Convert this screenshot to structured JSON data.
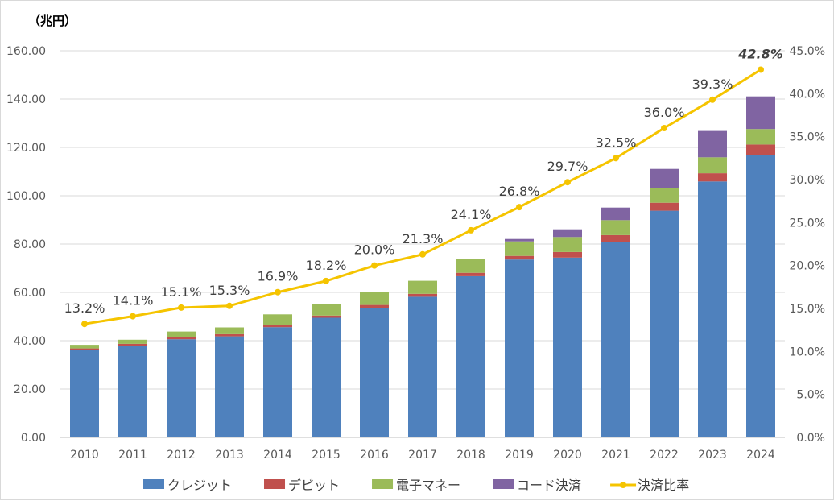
{
  "chart_data": {
    "type": "bar",
    "stacked": true,
    "ylabel": "（兆円）",
    "ylim": [
      0,
      160
    ],
    "y_ticks": [
      "0.00",
      "20.00",
      "40.00",
      "60.00",
      "80.00",
      "100.00",
      "120.00",
      "140.00",
      "160.00"
    ],
    "y2lim": [
      0,
      45
    ],
    "y2_ticks": [
      "0.0%",
      "5.0%",
      "10.0%",
      "15.0%",
      "20.0%",
      "25.0%",
      "30.0%",
      "35.0%",
      "40.0%",
      "45.0%"
    ],
    "grid": true,
    "legend_placement": "bottom",
    "categories": [
      "2010",
      "2011",
      "2012",
      "2013",
      "2014",
      "2015",
      "2016",
      "2017",
      "2018",
      "2019",
      "2020",
      "2021",
      "2022",
      "2023",
      "2024"
    ],
    "series": [
      {
        "name": "クレジット",
        "type": "bar",
        "color": "#4f81bd",
        "values": [
          36.0,
          37.9,
          40.6,
          41.8,
          45.6,
          49.5,
          53.6,
          58.2,
          66.7,
          73.6,
          74.4,
          81.0,
          93.8,
          105.9,
          117.0
        ]
      },
      {
        "name": "デビット",
        "type": "bar",
        "color": "#c0504d",
        "values": [
          0.8,
          0.8,
          1.0,
          0.9,
          1.0,
          0.9,
          1.2,
          1.2,
          1.4,
          1.5,
          2.3,
          2.7,
          3.3,
          3.4,
          4.2
        ]
      },
      {
        "name": "電子マネー",
        "type": "bar",
        "color": "#9bbb59",
        "values": [
          1.5,
          1.7,
          2.2,
          2.8,
          4.3,
          4.6,
          5.4,
          5.4,
          5.6,
          6.0,
          6.2,
          6.2,
          6.2,
          6.6,
          6.4
        ]
      },
      {
        "name": "コード決済",
        "type": "bar",
        "color": "#8064a2",
        "values": [
          0,
          0,
          0,
          0,
          0,
          0,
          0,
          0,
          0,
          1.0,
          3.2,
          5.2,
          7.8,
          10.9,
          13.5
        ]
      },
      {
        "name": "決済比率",
        "type": "line",
        "axis": "right",
        "color": "#f5c400",
        "values": [
          13.2,
          14.1,
          15.1,
          15.3,
          16.9,
          18.2,
          20.0,
          21.3,
          24.1,
          26.8,
          29.7,
          32.5,
          36.0,
          39.3,
          42.8
        ],
        "labels": [
          "13.2%",
          "14.1%",
          "15.1%",
          "15.3%",
          "16.9%",
          "18.2%",
          "20.0%",
          "21.3%",
          "24.1%",
          "26.8%",
          "29.7%",
          "32.5%",
          "36.0%",
          "39.3%",
          "42.8%"
        ],
        "highlight_color": "#e60012"
      }
    ]
  }
}
